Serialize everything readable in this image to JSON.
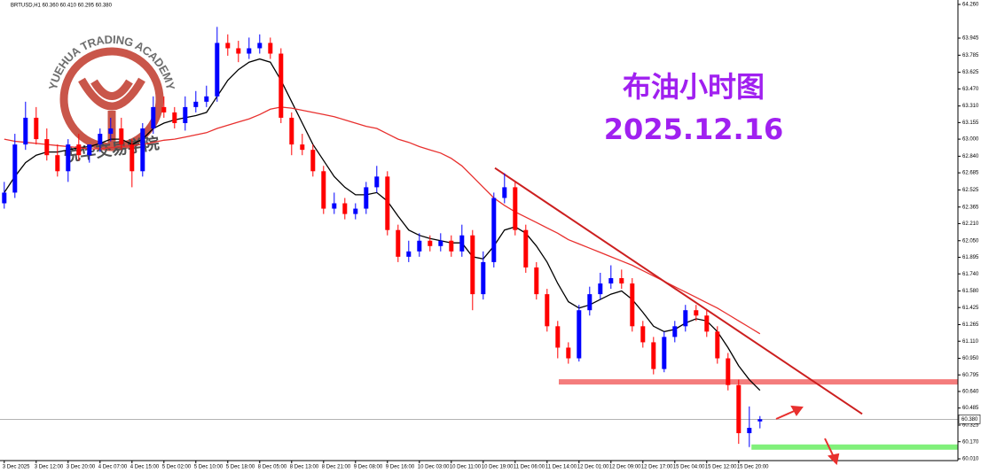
{
  "header": "BRTUSD,H1  60.360 60.410 60.295 60.380",
  "watermark": {
    "top": "YUEHUA TRADING ACADEMY",
    "bottom": "悦华交易学院"
  },
  "chart_data": {
    "type": "candlestick",
    "title": "布油小时图",
    "subtitle": "2025.12.16",
    "categories": [
      "3 Dec 2025",
      null,
      null,
      "3 Dec 12:00",
      null,
      null,
      "3 Dec 20:00",
      null,
      null,
      "4 Dec 07:00",
      null,
      null,
      "4 Dec 15:00",
      null,
      null,
      "5 Dec 02:00",
      null,
      null,
      "5 Dec 10:00",
      null,
      null,
      "5 Dec 18:00",
      null,
      null,
      "8 Dec 05:00",
      null,
      null,
      "8 Dec 13:00",
      null,
      null,
      "8 Dec 21:00",
      null,
      null,
      "9 Dec 08:00",
      null,
      null,
      "9 Dec 16:00",
      null,
      null,
      "10 Dec 03:00",
      null,
      null,
      "10 Dec 11:00",
      null,
      null,
      "10 Dec 19:00",
      null,
      null,
      "11 Dec 06:00",
      null,
      null,
      "11 Dec 14:00",
      null,
      null,
      "12 Dec 01:00",
      null,
      null,
      "12 Dec 09:00",
      null,
      null,
      "12 Dec 17:00",
      null,
      null,
      "15 Dec 04:00",
      null,
      null,
      "15 Dec 12:00",
      null,
      null,
      "15 Dec 20:00",
      null,
      null
    ],
    "open": [
      62.4,
      62.5,
      62.95,
      63.2,
      63.0,
      62.85,
      62.7,
      62.95,
      62.85,
      62.95,
      63.05,
      63.1,
      62.95,
      62.7,
      63.1,
      63.3,
      63.25,
      63.15,
      63.3,
      63.35,
      63.4,
      63.9,
      63.85,
      63.8,
      63.85,
      63.9,
      63.8,
      63.2,
      62.95,
      62.9,
      62.7,
      62.35,
      62.4,
      62.3,
      62.35,
      62.55,
      62.65,
      62.15,
      61.9,
      61.95,
      62.05,
      62.0,
      62.05,
      61.95,
      62.1,
      61.55,
      61.85,
      62.45,
      62.55,
      62.15,
      61.8,
      61.55,
      61.25,
      61.05,
      60.95,
      61.4,
      61.55,
      61.65,
      61.7,
      61.65,
      61.25,
      61.1,
      60.85,
      61.15,
      61.25,
      61.4,
      61.35,
      61.2,
      60.95,
      60.7,
      60.25,
      60.36
    ],
    "high": [
      62.6,
      63.05,
      63.35,
      63.3,
      63.1,
      62.95,
      63.0,
      63.05,
      62.95,
      63.1,
      63.2,
      63.2,
      63.0,
      63.15,
      63.4,
      63.4,
      63.3,
      63.4,
      63.45,
      63.5,
      64.05,
      63.98,
      63.92,
      63.95,
      63.98,
      63.95,
      63.85,
      63.25,
      63.05,
      62.95,
      62.75,
      62.5,
      62.45,
      62.4,
      62.6,
      62.75,
      62.7,
      62.2,
      62.05,
      62.12,
      62.1,
      62.12,
      62.1,
      62.2,
      62.15,
      61.95,
      62.5,
      62.68,
      62.6,
      62.2,
      61.85,
      61.6,
      61.3,
      61.1,
      61.45,
      61.62,
      61.75,
      61.82,
      61.78,
      61.7,
      61.3,
      61.15,
      61.2,
      61.3,
      61.45,
      61.45,
      61.4,
      61.25,
      61.0,
      60.75,
      60.5,
      60.41
    ],
    "low": [
      62.35,
      62.45,
      62.9,
      62.95,
      62.8,
      62.65,
      62.6,
      62.8,
      62.78,
      62.88,
      62.98,
      62.9,
      62.55,
      62.65,
      63.05,
      63.2,
      63.1,
      63.08,
      63.25,
      63.3,
      63.35,
      63.78,
      63.72,
      63.75,
      63.8,
      63.75,
      63.15,
      62.85,
      62.85,
      62.65,
      62.3,
      62.3,
      62.25,
      62.25,
      62.3,
      62.5,
      62.1,
      61.85,
      61.85,
      61.9,
      61.95,
      61.95,
      61.9,
      61.9,
      61.4,
      61.5,
      61.8,
      62.4,
      62.1,
      61.75,
      61.5,
      61.2,
      60.95,
      60.9,
      60.92,
      61.35,
      61.5,
      61.6,
      61.6,
      61.2,
      61.05,
      60.8,
      60.82,
      61.1,
      61.2,
      61.3,
      61.15,
      60.9,
      60.65,
      60.15,
      60.12,
      60.295
    ],
    "close": [
      62.5,
      62.95,
      63.2,
      63.0,
      62.85,
      62.7,
      62.95,
      62.85,
      62.95,
      63.05,
      63.1,
      62.95,
      62.7,
      63.1,
      63.3,
      63.25,
      63.15,
      63.3,
      63.35,
      63.4,
      63.9,
      63.85,
      63.8,
      63.85,
      63.9,
      63.8,
      63.2,
      62.95,
      62.9,
      62.7,
      62.35,
      62.4,
      62.3,
      62.35,
      62.55,
      62.65,
      62.15,
      61.9,
      61.95,
      62.05,
      62.0,
      62.05,
      61.95,
      62.1,
      61.55,
      61.85,
      62.45,
      62.55,
      62.15,
      61.8,
      61.55,
      61.25,
      61.05,
      60.95,
      61.4,
      61.55,
      61.65,
      61.7,
      61.65,
      61.25,
      61.1,
      60.85,
      61.15,
      61.25,
      61.4,
      61.35,
      61.2,
      60.95,
      60.7,
      60.25,
      60.3,
      60.38
    ],
    "up_color": "#0000ff",
    "down_color": "#ff0000",
    "moving_averages": [
      {
        "color": "#000000",
        "values": [
          62.5,
          62.65,
          62.78,
          62.85,
          62.88,
          62.88,
          62.9,
          62.92,
          62.93,
          62.96,
          63.0,
          63.0,
          62.95,
          63.0,
          63.1,
          63.15,
          63.18,
          63.2,
          63.22,
          63.25,
          63.4,
          63.55,
          63.65,
          63.72,
          63.75,
          63.72,
          63.55,
          63.35,
          63.15,
          62.95,
          62.8,
          62.65,
          62.55,
          62.48,
          62.48,
          62.5,
          62.42,
          62.28,
          62.15,
          62.1,
          62.07,
          62.05,
          62.03,
          62.03,
          61.9,
          61.88,
          62.0,
          62.15,
          62.18,
          62.12,
          62.0,
          61.85,
          61.65,
          61.48,
          61.42,
          61.45,
          61.5,
          61.55,
          61.58,
          61.5,
          61.38,
          61.25,
          61.2,
          61.22,
          61.28,
          61.32,
          61.3,
          61.2,
          61.05,
          60.88,
          60.75,
          60.65
        ]
      },
      {
        "color": "#e8302e",
        "values": [
          63.0,
          62.98,
          62.97,
          62.96,
          62.95,
          62.94,
          62.93,
          62.92,
          62.91,
          62.91,
          62.92,
          62.93,
          62.94,
          62.95,
          62.97,
          62.99,
          63.0,
          63.02,
          63.04,
          63.06,
          63.1,
          63.13,
          63.16,
          63.19,
          63.23,
          63.28,
          63.3,
          63.29,
          63.27,
          63.25,
          63.23,
          63.21,
          63.18,
          63.15,
          63.12,
          63.1,
          63.05,
          63.0,
          62.97,
          62.93,
          62.9,
          62.87,
          62.82,
          62.75,
          62.65,
          62.55,
          62.45,
          62.38,
          62.32,
          62.27,
          62.22,
          62.17,
          62.12,
          62.06,
          62.02,
          61.98,
          61.94,
          61.9,
          61.86,
          61.82,
          61.77,
          61.72,
          61.67,
          61.62,
          61.57,
          61.52,
          61.47,
          61.42,
          61.36,
          61.3,
          61.24,
          61.18
        ]
      }
    ],
    "xlim": [
      -0.4,
      89.6
    ],
    "ylim": [
      60.01,
      64.26
    ],
    "yticks": [
      {
        "value": 64.26,
        "label": "64.260"
      },
      {
        "value": 63.945,
        "label": "63.945"
      },
      {
        "value": 63.785,
        "label": "63.785"
      },
      {
        "value": 63.625,
        "label": "63.625"
      },
      {
        "value": 63.47,
        "label": "63.470"
      },
      {
        "value": 63.31,
        "label": "63.310"
      },
      {
        "value": 63.155,
        "label": "63.155"
      },
      {
        "value": 63.0,
        "label": "63.000"
      },
      {
        "value": 62.84,
        "label": "62.840"
      },
      {
        "value": 62.685,
        "label": "62.685"
      },
      {
        "value": 62.525,
        "label": "62.525"
      },
      {
        "value": 62.365,
        "label": "62.365"
      },
      {
        "value": 62.21,
        "label": "62.210"
      },
      {
        "value": 62.05,
        "label": "62.050"
      },
      {
        "value": 61.895,
        "label": "61.895"
      },
      {
        "value": 61.74,
        "label": "61.740"
      },
      {
        "value": 61.58,
        "label": "61.580"
      },
      {
        "value": 61.425,
        "label": "61.425"
      },
      {
        "value": 61.265,
        "label": "61.265"
      },
      {
        "value": 61.11,
        "label": "61.110"
      },
      {
        "value": 60.95,
        "label": "60.950"
      },
      {
        "value": 60.795,
        "label": "60.795"
      },
      {
        "value": 60.64,
        "label": "60.640"
      },
      {
        "value": 60.485,
        "label": "60.485"
      },
      {
        "value": 60.325,
        "label": "60.325"
      },
      {
        "value": 60.17,
        "label": "60.170"
      },
      {
        "value": 60.01,
        "label": "60.010"
      }
    ],
    "price_line": {
      "value": 60.38,
      "label": "60.380"
    },
    "zones": [
      {
        "value": 60.73,
        "from": 52.1,
        "color": "#f47c7c"
      },
      {
        "value": 60.12,
        "from": 70.2,
        "color": "#80f07a"
      }
    ],
    "trendline": {
      "x": [
        46.1,
        80.6
      ],
      "y": [
        62.73,
        60.43
      ],
      "color": "#cc1f1f"
    }
  }
}
